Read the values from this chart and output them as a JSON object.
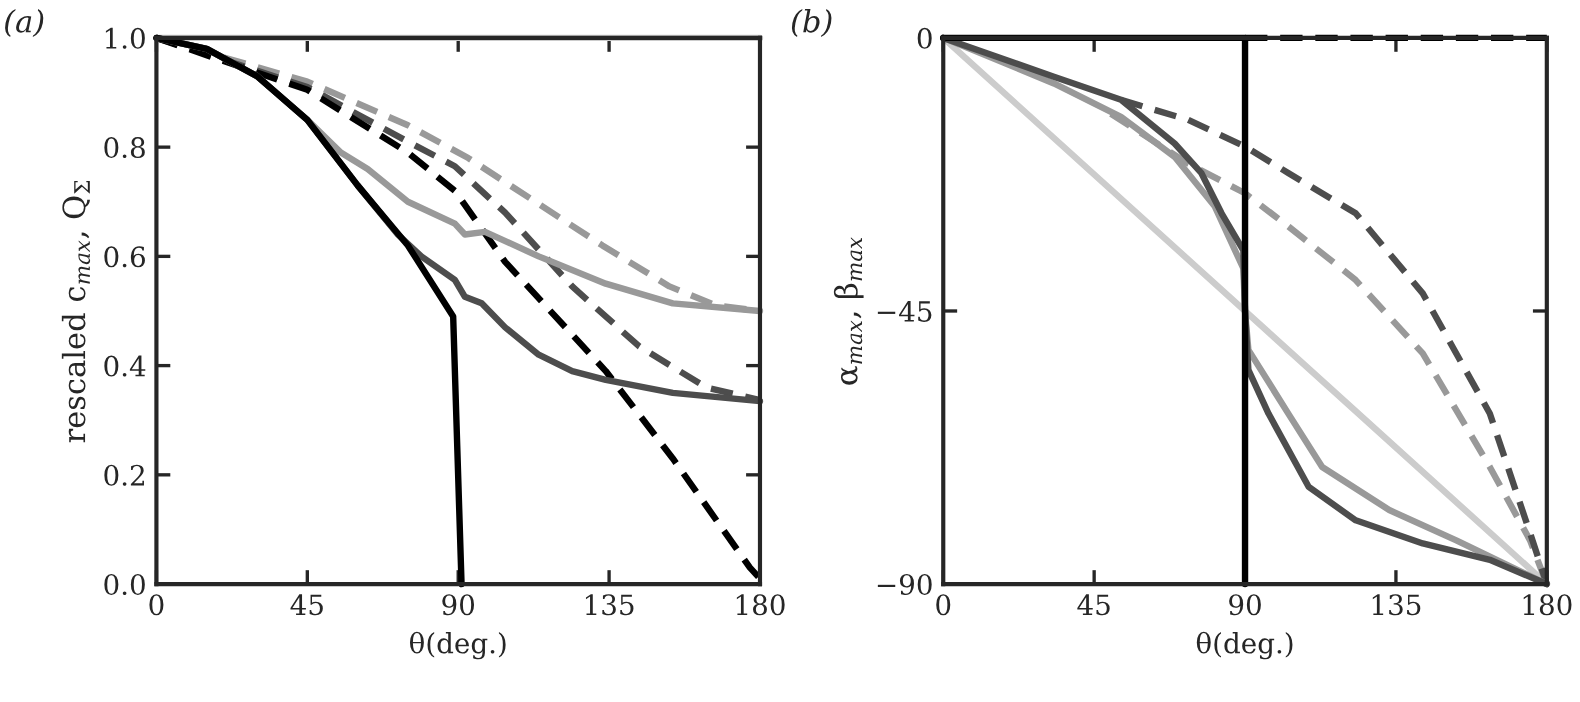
{
  "chart_data": [
    {
      "type": "line",
      "xlabel": "θ(deg.)",
      "ylabel": "rescaled c$_{max}$, Q$_{Σ}$",
      "annotations": [
        "(a)"
      ],
      "xlim": [
        0,
        180
      ],
      "xticks": [
        0,
        45,
        90,
        135,
        180
      ],
      "ylim": [
        0,
        1.0
      ],
      "yticks": [
        {
          "value": 0,
          "label": "0.0"
        },
        {
          "value": 0.2,
          "label": "0.2"
        },
        {
          "value": 0.4,
          "label": "0.4"
        },
        {
          "value": 0.6,
          "label": "0.6"
        },
        {
          "value": 0.8,
          "label": "0.8"
        },
        {
          "value": 1.0,
          "label": "1.0"
        }
      ],
      "series": [
        {
          "color": "#cccccc",
          "line_style": "solid",
          "x": [
            0,
            180
          ],
          "values": [
            1.0,
            1.0
          ]
        },
        {
          "color": "#999999",
          "line_style": "dashed",
          "x": [
            0,
            45,
            75,
            93,
            113,
            133,
            153,
            167,
            180
          ],
          "values": [
            1.0,
            0.92,
            0.84,
            0.78,
            0.7,
            0.62,
            0.545,
            0.51,
            0.5
          ]
        },
        {
          "color": "#4d4d4d",
          "line_style": "dashed",
          "x": [
            0,
            45,
            75,
            89,
            104,
            124,
            144,
            164,
            180
          ],
          "values": [
            1.0,
            0.91,
            0.81,
            0.765,
            0.68,
            0.545,
            0.435,
            0.36,
            0.337
          ]
        },
        {
          "color": "#000000",
          "line_style": "dashed",
          "x": [
            0,
            45,
            75,
            89,
            104,
            134,
            154,
            177,
            180
          ],
          "values": [
            1.0,
            0.905,
            0.79,
            0.72,
            0.59,
            0.39,
            0.23,
            0.03,
            0.01
          ]
        },
        {
          "color": "#999999",
          "line_style": "solid",
          "x": [
            0,
            15,
            30,
            45,
            55,
            63,
            75,
            89,
            92,
            98,
            114,
            134,
            154,
            180
          ],
          "values": [
            1.0,
            0.98,
            0.93,
            0.85,
            0.79,
            0.76,
            0.7,
            0.66,
            0.64,
            0.645,
            0.6,
            0.55,
            0.514,
            0.5
          ]
        },
        {
          "color": "#4d4d4d",
          "line_style": "solid",
          "x": [
            0,
            15,
            30,
            45,
            60,
            72,
            79,
            89,
            92,
            97,
            104,
            114,
            124,
            134,
            154,
            180
          ],
          "values": [
            1.0,
            0.98,
            0.93,
            0.85,
            0.73,
            0.64,
            0.6,
            0.557,
            0.526,
            0.514,
            0.47,
            0.42,
            0.39,
            0.374,
            0.35,
            0.335
          ]
        },
        {
          "color": "#000000",
          "line_style": "solid",
          "x": [
            0,
            15,
            30,
            45,
            60,
            75,
            88.5,
            91
          ],
          "values": [
            1.0,
            0.98,
            0.93,
            0.85,
            0.73,
            0.62,
            0.49,
            0.0
          ]
        }
      ]
    },
    {
      "type": "line",
      "xlabel": "θ(deg.)",
      "ylabel": "α$_{max}$, β$_{max}$",
      "annotations": [
        "(b)"
      ],
      "xlim": [
        0,
        180
      ],
      "xticks": [
        0,
        45,
        90,
        135,
        180
      ],
      "ylim": [
        -90,
        0
      ],
      "yticks": [
        {
          "value": -90,
          "label": "−90"
        },
        {
          "value": -45,
          "label": "−45"
        },
        {
          "value": 0,
          "label": "0"
        }
      ],
      "series": [
        {
          "color": "#cccccc",
          "line_style": "solid",
          "x": [
            0,
            180
          ],
          "values": [
            0,
            -90
          ]
        },
        {
          "color": "#999999",
          "line_style": "dashed",
          "x": [
            50,
            59,
            73,
            90,
            103,
            123,
            143,
            163,
            175,
            180
          ],
          "values": [
            -12.5,
            -15.7,
            -20.7,
            -25.6,
            -31.1,
            -39.9,
            -52.0,
            -70.7,
            -82.8,
            -90
          ]
        },
        {
          "color": "#4d4d4d",
          "line_style": "dashed",
          "x": [
            53,
            73,
            90,
            103,
            123,
            143,
            163,
            175,
            180
          ],
          "values": [
            -10.2,
            -13.5,
            -17.9,
            -22.3,
            -28.9,
            -42.1,
            -61.9,
            -81.6,
            -90
          ]
        },
        {
          "color": "#000000",
          "line_style": "dashed",
          "x": [
            90,
            180
          ],
          "values": [
            0,
            0
          ]
        },
        {
          "color": "#999999",
          "line_style": "solid",
          "x": [
            0,
            33,
            53,
            69,
            81,
            89.5,
            90,
            91,
            103,
            113,
            133,
            153,
            180
          ],
          "values": [
            0,
            -7.5,
            -13.0,
            -19.6,
            -27.8,
            -38,
            -45,
            -51.4,
            -62,
            -70.7,
            -77.8,
            -82.8,
            -90
          ]
        },
        {
          "color": "#4d4d4d",
          "line_style": "solid",
          "x": [
            0,
            33,
            53,
            69,
            77,
            83,
            89.5,
            90,
            91,
            97,
            109,
            123,
            143,
            163,
            180
          ],
          "values": [
            0,
            -6.4,
            -10.2,
            -17.4,
            -22.3,
            -28.9,
            -35,
            -45,
            -54.7,
            -61.9,
            -74.0,
            -79.5,
            -83.3,
            -86.0,
            -90
          ]
        },
        {
          "color": "#000000",
          "line_style": "solid",
          "x": [
            0,
            90,
            90
          ],
          "values": [
            0,
            0,
            -90
          ]
        }
      ]
    }
  ]
}
